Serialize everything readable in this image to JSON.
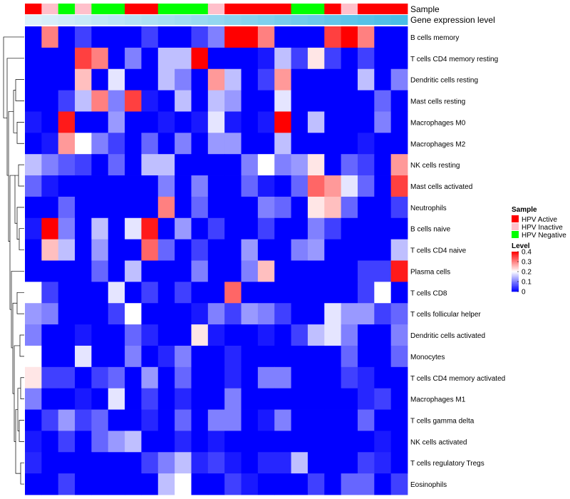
{
  "chart_data": {
    "type": "heatmap",
    "title": "",
    "annotation_tracks": [
      {
        "name": "Sample",
        "values": [
          "HPV Active",
          "HPV Inactive",
          "HPV Negative",
          "HPV Inactive",
          "HPV Negative",
          "HPV Negative",
          "HPV Active",
          "HPV Active",
          "HPV Negative",
          "HPV Negative",
          "HPV Negative",
          "HPV Inactive",
          "HPV Active",
          "HPV Active",
          "HPV Active",
          "HPV Active",
          "HPV Negative",
          "HPV Negative",
          "HPV Active",
          "HPV Inactive",
          "HPV Active",
          "HPV Active",
          "HPV Active"
        ]
      },
      {
        "name": "Gene expression level",
        "values": [
          0.02,
          0.04,
          0.06,
          0.08,
          0.1,
          0.12,
          0.14,
          0.16,
          0.18,
          0.2,
          0.22,
          0.24,
          0.26,
          0.28,
          0.3,
          0.32,
          0.34,
          0.36,
          0.38,
          0.4,
          0.42,
          0.44,
          0.46
        ]
      }
    ],
    "rows": [
      "B cells memory",
      "T cells CD4 memory resting",
      "Dendritic cells resting",
      "Mast cells resting",
      "Macrophages M0",
      "Macrophages M2",
      "NK cells resting",
      "Mast cells activated",
      "Neutrophils",
      "B cells naive",
      "T cells CD4 naive",
      "Plasma cells",
      "T cells CD8",
      "T cells follicular helper",
      "Dendritic cells activated",
      "Monocytes",
      "T cells CD4 memory activated",
      "Macrophages M1",
      "T cells gamma delta",
      "NK cells activated",
      "T cells regulatory  Tregs",
      "Eosinophils"
    ],
    "values": [
      [
        0,
        0.3,
        0,
        0.05,
        0,
        0,
        0,
        0.05,
        0,
        0,
        0.05,
        0.1,
        0.4,
        0.4,
        0.3,
        0,
        0,
        0,
        0.35,
        0.4,
        0.3,
        0,
        0
      ],
      [
        0,
        0,
        0,
        0.35,
        0.3,
        0,
        0.1,
        0,
        0.15,
        0.15,
        0.4,
        0,
        0,
        0,
        0.02,
        0.15,
        0.05,
        0.22,
        0.05,
        0,
        0.05,
        0,
        0
      ],
      [
        0,
        0,
        0,
        0.25,
        0,
        0.18,
        0,
        0,
        0.15,
        0.1,
        0,
        0.28,
        0.15,
        0,
        0.05,
        0.28,
        0,
        0,
        0,
        0,
        0.15,
        0,
        0.1
      ],
      [
        0,
        0,
        0.05,
        0.15,
        0.3,
        0.1,
        0.35,
        0.02,
        0,
        0.15,
        0,
        0.15,
        0.12,
        0,
        0,
        0.18,
        0,
        0,
        0,
        0,
        0,
        0.08,
        0
      ],
      [
        0.02,
        0,
        0.38,
        0,
        0,
        0.12,
        0,
        0,
        0.02,
        0,
        0.02,
        0.18,
        0.02,
        0,
        0.02,
        0.4,
        0,
        0.15,
        0,
        0,
        0,
        0.1,
        0
      ],
      [
        0,
        0.02,
        0.28,
        0.2,
        0.1,
        0.05,
        0,
        0.08,
        0,
        0.1,
        0,
        0.12,
        0.12,
        0,
        0,
        0.15,
        0,
        0,
        0,
        0,
        0.02,
        0,
        0
      ],
      [
        0.15,
        0.1,
        0.07,
        0.05,
        0,
        0.08,
        0,
        0.15,
        0.15,
        0,
        0,
        0,
        0,
        0.1,
        0.2,
        0.1,
        0.12,
        0.22,
        0,
        0.08,
        0.05,
        0,
        0.28
      ],
      [
        0.08,
        0.02,
        0,
        0,
        0,
        0,
        0,
        0,
        0.1,
        0,
        0.1,
        0,
        0,
        0.08,
        0.02,
        0,
        0.08,
        0.32,
        0.28,
        0.18,
        0.08,
        0,
        0.35
      ],
      [
        0,
        0,
        0.08,
        0,
        0,
        0,
        0,
        0,
        0.3,
        0,
        0.08,
        0,
        0,
        0,
        0.1,
        0.08,
        0,
        0.22,
        0.25,
        0.08,
        0,
        0,
        0.05
      ],
      [
        0.02,
        0.4,
        0.1,
        0,
        0.15,
        0,
        0.18,
        0.38,
        0,
        0.12,
        0,
        0.05,
        0,
        0,
        0.05,
        0,
        0,
        0.1,
        0.05,
        0,
        0,
        0,
        0
      ],
      [
        0,
        0.25,
        0.15,
        0,
        0.12,
        0,
        0,
        0.32,
        0.08,
        0,
        0.05,
        0,
        0,
        0.12,
        0,
        0,
        0.1,
        0.12,
        0,
        0,
        0,
        0,
        0.15
      ],
      [
        0,
        0,
        0,
        0,
        0.08,
        0,
        0.15,
        0,
        0,
        0,
        0.1,
        0,
        0,
        0.1,
        0.25,
        0,
        0,
        0,
        0,
        0,
        0.05,
        0.05,
        0.38
      ],
      [
        0.2,
        0.05,
        0,
        0,
        0,
        0.18,
        0,
        0.05,
        0,
        0.05,
        0,
        0,
        0.32,
        0,
        0,
        0,
        0,
        0,
        0,
        0,
        0.05,
        0.2,
        0
      ],
      [
        0.12,
        0.1,
        0,
        0,
        0,
        0.05,
        0.2,
        0,
        0,
        0,
        0.02,
        0.1,
        0.05,
        0.12,
        0.1,
        0.05,
        0,
        0,
        0.18,
        0.12,
        0.12,
        0.05,
        0.08
      ],
      [
        0.1,
        0,
        0,
        0.02,
        0,
        0,
        0.08,
        0.03,
        0,
        0,
        0.22,
        0.02,
        0,
        0,
        0.02,
        0,
        0.05,
        0.15,
        0.18,
        0.1,
        0,
        0,
        0.1
      ],
      [
        0.2,
        0,
        0,
        0.18,
        0,
        0,
        0.1,
        0,
        0.03,
        0.1,
        0,
        0,
        0.03,
        0,
        0,
        0,
        0,
        0,
        0,
        0.08,
        0,
        0,
        0.08
      ],
      [
        0.22,
        0.05,
        0.05,
        0,
        0.05,
        0.08,
        0,
        0.12,
        0,
        0.08,
        0,
        0,
        0.03,
        0,
        0.1,
        0.1,
        0,
        0,
        0,
        0.05,
        0.03,
        0,
        0
      ],
      [
        0.1,
        0,
        0,
        0.02,
        0,
        0.18,
        0,
        0.05,
        0,
        0.03,
        0,
        0,
        0.1,
        0,
        0,
        0,
        0,
        0,
        0,
        0,
        0.03,
        0.05,
        0
      ],
      [
        0,
        0.05,
        0.12,
        0.05,
        0.08,
        0,
        0,
        0.03,
        0,
        0.08,
        0,
        0.1,
        0.1,
        0,
        0.02,
        0.1,
        0,
        0,
        0,
        0,
        0.08,
        0,
        0
      ],
      [
        0.02,
        0,
        0.05,
        0,
        0.08,
        0.12,
        0.15,
        0,
        0,
        0.03,
        0,
        0.02,
        0,
        0,
        0,
        0,
        0,
        0,
        0,
        0,
        0,
        0.02,
        0
      ],
      [
        0.03,
        0,
        0,
        0,
        0,
        0,
        0,
        0.05,
        0.1,
        0.15,
        0.03,
        0.05,
        0.02,
        0,
        0.03,
        0.03,
        0.15,
        0,
        0,
        0,
        0.05,
        0.03,
        0
      ],
      [
        0,
        0,
        0.05,
        0,
        0,
        0,
        0,
        0,
        0.15,
        0.2,
        0,
        0,
        0.05,
        0.02,
        0,
        0,
        0,
        0.05,
        0,
        0.08,
        0.08,
        0,
        0.05
      ]
    ],
    "color_scale": {
      "min": 0,
      "max": 0.4,
      "colors": [
        "#0000ff",
        "#ffffff",
        "#ff0000"
      ]
    },
    "legends": [
      {
        "title": "Sample",
        "entries": [
          {
            "label": "HPV Active",
            "color": "#ff0000"
          },
          {
            "label": "HPV Inactive",
            "color": "#ffc0cb"
          },
          {
            "label": "HPV Negative",
            "color": "#00ff00"
          }
        ]
      },
      {
        "title": "Level",
        "ticks": [
          "0.4",
          "0.3",
          "0.2",
          "0.1",
          "0"
        ]
      }
    ],
    "dendrogram": "rows",
    "legend_position": "right"
  },
  "colors": {
    "hpv_active": "#ff0000",
    "hpv_inactive": "#ffc0cb",
    "hpv_negative": "#00ff00",
    "low": "#0000ff",
    "mid": "#ffffff",
    "high": "#ff0000"
  }
}
